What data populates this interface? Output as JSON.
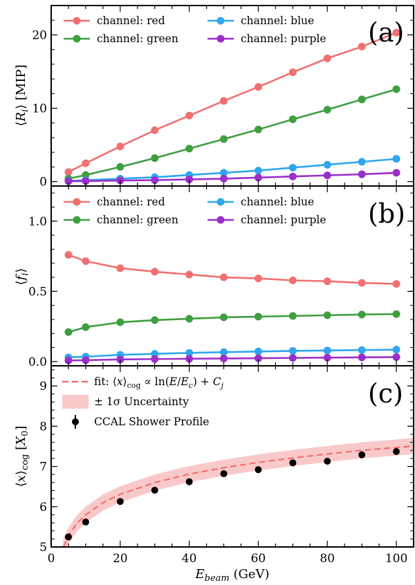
{
  "chart_data": [
    {
      "type": "line",
      "panel_tag": "(a)",
      "ylabel": "⟨R_i⟩ [MIP]",
      "ylim": [
        -0.6,
        24.0
      ],
      "yticks": [
        0,
        10,
        20
      ],
      "xlim": [
        0,
        105
      ],
      "x": [
        5,
        10,
        20,
        30,
        40,
        50,
        60,
        70,
        80,
        90,
        100
      ],
      "legend_position": "top-left",
      "series": [
        {
          "name": "channel: red",
          "color": "#f07070",
          "values": [
            1.3,
            2.5,
            4.8,
            7.0,
            9.0,
            11.0,
            12.9,
            14.9,
            16.8,
            18.4,
            20.3
          ]
        },
        {
          "name": "channel: green",
          "color": "#3f9e3f",
          "values": [
            0.4,
            0.9,
            2.0,
            3.2,
            4.5,
            5.8,
            7.1,
            8.5,
            9.8,
            11.2,
            12.6
          ]
        },
        {
          "name": "channel: blue",
          "color": "#2fa6ee",
          "values": [
            0.1,
            0.2,
            0.4,
            0.6,
            0.9,
            1.2,
            1.5,
            1.9,
            2.3,
            2.7,
            3.1
          ]
        },
        {
          "name": "channel: purple",
          "color": "#9b2fc9",
          "values": [
            0.05,
            0.07,
            0.15,
            0.2,
            0.3,
            0.4,
            0.55,
            0.7,
            0.85,
            1.0,
            1.2
          ]
        }
      ]
    },
    {
      "type": "line",
      "panel_tag": "(b)",
      "ylabel": "⟨f_i⟩",
      "ylim": [
        -0.03,
        1.25
      ],
      "yticks": [
        0.0,
        0.5,
        1.0
      ],
      "ytick_labels": [
        "0.0",
        "0.5",
        "1.0"
      ],
      "xlim": [
        0,
        105
      ],
      "x": [
        5,
        10,
        20,
        30,
        40,
        50,
        60,
        70,
        80,
        90,
        100
      ],
      "legend_position": "top-left",
      "series": [
        {
          "name": "channel: red",
          "color": "#f07070",
          "values": [
            0.76,
            0.715,
            0.665,
            0.64,
            0.62,
            0.6,
            0.592,
            0.578,
            0.572,
            0.56,
            0.553
          ]
        },
        {
          "name": "channel: green",
          "color": "#3f9e3f",
          "values": [
            0.21,
            0.245,
            0.28,
            0.295,
            0.305,
            0.315,
            0.32,
            0.325,
            0.33,
            0.335,
            0.338
          ]
        },
        {
          "name": "channel: blue",
          "color": "#2fa6ee",
          "values": [
            0.03,
            0.035,
            0.048,
            0.055,
            0.062,
            0.067,
            0.072,
            0.076,
            0.079,
            0.082,
            0.085
          ]
        },
        {
          "name": "channel: purple",
          "color": "#9b2fc9",
          "values": [
            0.008,
            0.01,
            0.015,
            0.018,
            0.02,
            0.022,
            0.024,
            0.026,
            0.028,
            0.03,
            0.032
          ]
        }
      ]
    },
    {
      "type": "scatter",
      "panel_tag": "(c)",
      "ylabel": "⟨x⟩_cog  [X_0]",
      "xlabel": "E_beam (GeV)",
      "ylim": [
        5,
        9.5
      ],
      "yticks": [
        5,
        6,
        7,
        8,
        9
      ],
      "xlim": [
        0,
        105
      ],
      "xticks": [
        0,
        20,
        40,
        60,
        80,
        100
      ],
      "legend_position": "top-left",
      "points": {
        "name": "CCAL Shower Profile",
        "color": "#000000",
        "x": [
          5,
          10,
          20,
          30,
          40,
          50,
          60,
          70,
          80,
          90,
          100
        ],
        "y": [
          5.25,
          5.62,
          6.13,
          6.41,
          6.62,
          6.82,
          6.92,
          7.09,
          7.13,
          7.29,
          7.37
        ]
      },
      "fit": {
        "name": "fit: ⟨x⟩_cog ∝ ln(E/E_c) + C_j",
        "color": "#f07070",
        "x": [
          3.5,
          5,
          7.5,
          10,
          15,
          20,
          30,
          40,
          50,
          60,
          70,
          80,
          90,
          100,
          105
        ],
        "y": [
          5.0,
          5.28,
          5.59,
          5.8,
          6.1,
          6.31,
          6.6,
          6.81,
          6.97,
          7.1,
          7.21,
          7.31,
          7.4,
          7.47,
          7.51
        ]
      },
      "band": {
        "name": "± 1σ Uncertainty",
        "color": "#f9c9c9",
        "half_width": 0.2
      }
    }
  ]
}
